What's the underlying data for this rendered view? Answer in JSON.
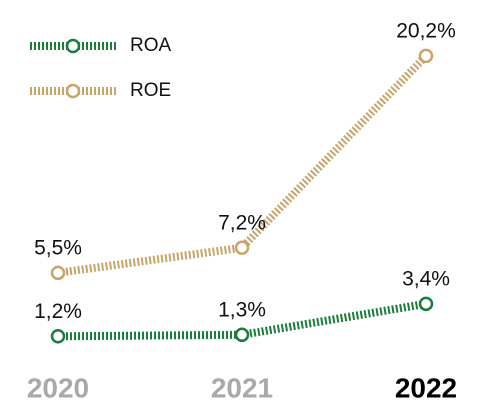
{
  "chart_data": {
    "type": "line",
    "categories": [
      "2020",
      "2021",
      "2022"
    ],
    "series": [
      {
        "name": "ROA",
        "color": "#1b7d3c",
        "values": [
          1.2,
          1.3,
          3.4
        ],
        "value_labels": [
          "1,2%",
          "1,3%",
          "3,4%"
        ]
      },
      {
        "name": "ROE",
        "color": "#c9a46a",
        "values": [
          5.5,
          7.2,
          20.2
        ],
        "value_labels": [
          "5,5%",
          "7,2%",
          "20,2%"
        ]
      }
    ],
    "legend": "top-left"
  }
}
